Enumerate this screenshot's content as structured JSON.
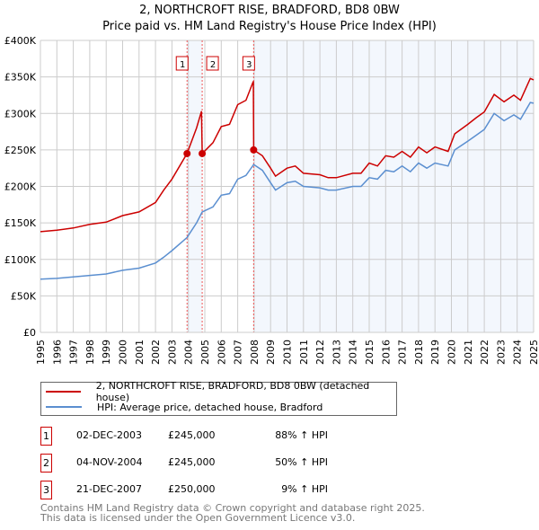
{
  "chart_data": {
    "type": "line",
    "title": "2, NORTHCROFT RISE, BRADFORD, BD8 0BW",
    "subtitle": "Price paid vs. HM Land Registry's House Price Index (HPI)",
    "xlim": [
      1995,
      2025
    ],
    "ylim": [
      0,
      400000
    ],
    "x_ticks": [
      "1995",
      "1996",
      "1997",
      "1998",
      "1999",
      "2000",
      "2001",
      "2002",
      "2003",
      "2004",
      "2005",
      "2006",
      "2007",
      "2008",
      "2009",
      "2010",
      "2011",
      "2012",
      "2013",
      "2014",
      "2015",
      "2016",
      "2017",
      "2018",
      "2019",
      "2020",
      "2021",
      "2022",
      "2023",
      "2024",
      "2025"
    ],
    "y_ticks": [
      {
        "v": 0,
        "label": "£0"
      },
      {
        "v": 50000,
        "label": "£50K"
      },
      {
        "v": 100000,
        "label": "£100K"
      },
      {
        "v": 150000,
        "label": "£150K"
      },
      {
        "v": 200000,
        "label": "£200K"
      },
      {
        "v": 250000,
        "label": "£250K"
      },
      {
        "v": 300000,
        "label": "£300K"
      },
      {
        "v": 350000,
        "label": "£350K"
      },
      {
        "v": 400000,
        "label": "£400K"
      }
    ],
    "grid": true,
    "series": [
      {
        "name": "2, NORTHCROFT RISE, BRADFORD, BD8 0BW (detached house)",
        "color": "#cc0000",
        "x": [
          1995,
          1996,
          1997,
          1998,
          1999,
          2000,
          2001,
          2002,
          2002.5,
          2003,
          2003.92,
          2004.5,
          2004.8,
          2004.84,
          2005.5,
          2006,
          2006.5,
          2007,
          2007.5,
          2007.95,
          2007.97,
          2008.5,
          2009,
          2009.3,
          2010,
          2010.5,
          2011,
          2012,
          2012.5,
          2013,
          2014,
          2014.5,
          2015,
          2015.5,
          2016,
          2016.5,
          2017,
          2017.5,
          2018,
          2018.5,
          2019,
          2019.8,
          2020.2,
          2021,
          2021.5,
          2022,
          2022.6,
          2023.2,
          2023.8,
          2024.2,
          2024.8,
          2025
        ],
        "y": [
          138000,
          140000,
          143000,
          148000,
          151000,
          160000,
          165000,
          178000,
          195000,
          210000,
          245000,
          280000,
          303000,
          245000,
          260000,
          282000,
          285000,
          312000,
          318000,
          344000,
          250000,
          242000,
          225000,
          214000,
          225000,
          228000,
          218000,
          216000,
          212000,
          212000,
          218000,
          218000,
          232000,
          228000,
          242000,
          240000,
          248000,
          240000,
          254000,
          246000,
          254000,
          248000,
          272000,
          285000,
          294000,
          302000,
          326000,
          316000,
          325000,
          318000,
          348000,
          346000
        ]
      },
      {
        "name": "HPI: Average price, detached house, Bradford",
        "color": "#5b8fd0",
        "x": [
          1995,
          1996,
          1997,
          1998,
          1999,
          2000,
          2001,
          2002,
          2002.5,
          2003,
          2003.92,
          2004.5,
          2004.84,
          2005.5,
          2006,
          2006.5,
          2007,
          2007.5,
          2007.97,
          2008.5,
          2009,
          2009.3,
          2010,
          2010.5,
          2011,
          2012,
          2012.5,
          2013,
          2014,
          2014.5,
          2015,
          2015.5,
          2016,
          2016.5,
          2017,
          2017.5,
          2018,
          2018.5,
          2019,
          2019.8,
          2020.2,
          2021,
          2021.5,
          2022,
          2022.6,
          2023.2,
          2023.8,
          2024.2,
          2024.8,
          2025
        ],
        "y": [
          73000,
          74000,
          76000,
          78000,
          80000,
          85000,
          88000,
          95000,
          103000,
          112000,
          130000,
          150000,
          165000,
          172000,
          188000,
          190000,
          210000,
          215000,
          230000,
          222000,
          205000,
          195000,
          205000,
          207000,
          200000,
          198000,
          195000,
          195000,
          200000,
          200000,
          212000,
          210000,
          222000,
          220000,
          228000,
          220000,
          232000,
          225000,
          232000,
          228000,
          250000,
          262000,
          270000,
          278000,
          300000,
          290000,
          298000,
          292000,
          315000,
          314000
        ]
      }
    ],
    "sales": [
      {
        "n": "1",
        "x": 2003.92,
        "date": "02-DEC-2003",
        "price_value": 245000,
        "price": "£245,000",
        "hpi": "88% ↑ HPI"
      },
      {
        "n": "2",
        "x": 2004.84,
        "date": "04-NOV-2004",
        "price_value": 245000,
        "price": "£245,000",
        "hpi": "50% ↑ HPI"
      },
      {
        "n": "3",
        "x": 2007.97,
        "date": "21-DEC-2007",
        "price_value": 250000,
        "price": "£250,000",
        "hpi": "9% ↑ HPI"
      }
    ]
  },
  "footer": {
    "line1": "Contains HM Land Registry data © Crown copyright and database right 2025.",
    "line2": "This data is licensed under the Open Government Licence v3.0."
  }
}
